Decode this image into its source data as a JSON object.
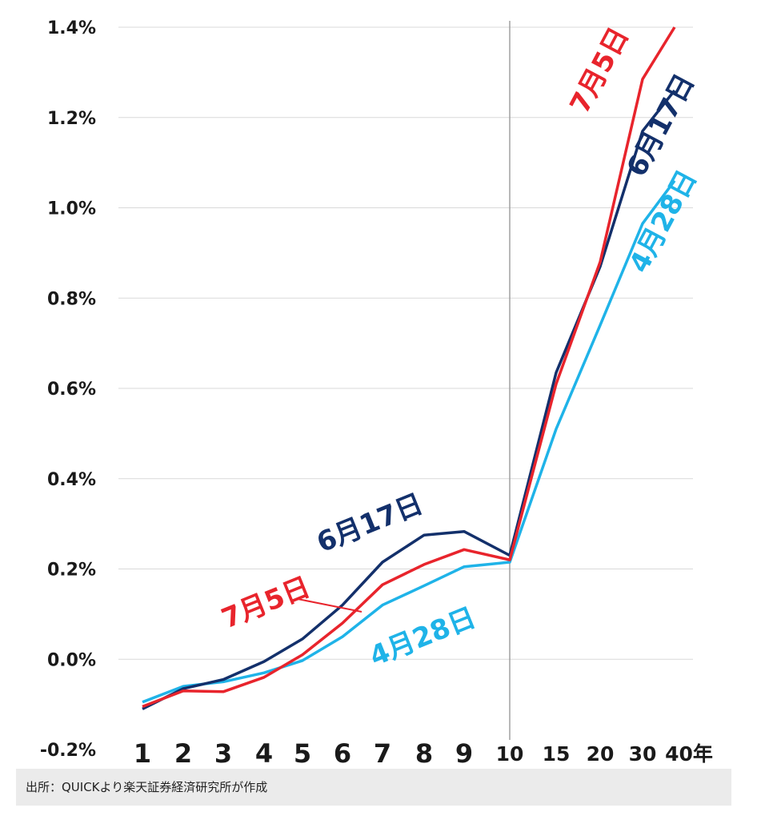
{
  "chart_data": {
    "type": "line",
    "title": "",
    "xlabel": "",
    "ylabel": "",
    "categories": [
      "1",
      "2",
      "3",
      "4",
      "5",
      "6",
      "7",
      "8",
      "9",
      "10",
      "15",
      "20",
      "30",
      "40年"
    ],
    "y_tick_labels": [
      "1.4%",
      "1.2%",
      "1.0%",
      "0.8%",
      "0.6%",
      "0.4%",
      "0.2%",
      "0.0%",
      "-0.2%"
    ],
    "y_ticks": [
      1.4,
      1.2,
      1.0,
      0.8,
      0.6,
      0.4,
      0.2,
      0.0,
      -0.2
    ],
    "ylim": [
      -0.2,
      1.4
    ],
    "grid": true,
    "series": [
      {
        "name": "4月28日",
        "color": "#1fb3e8",
        "values": [
          -0.095,
          -0.06,
          -0.05,
          -0.03,
          -0.003,
          0.05,
          0.12,
          0.163,
          0.205,
          0.215,
          0.51,
          0.74,
          0.965,
          1.06
        ]
      },
      {
        "name": "6月17日",
        "color": "#13306b",
        "values": [
          -0.11,
          -0.065,
          -0.045,
          -0.005,
          0.045,
          0.12,
          0.215,
          0.275,
          0.283,
          0.23,
          0.635,
          0.87,
          1.17,
          1.26
        ]
      },
      {
        "name": "7月5日",
        "color": "#e8242c",
        "values": [
          -0.105,
          -0.07,
          -0.072,
          -0.04,
          0.01,
          0.08,
          0.165,
          0.21,
          0.243,
          0.22,
          0.61,
          0.88,
          1.285,
          1.4
        ]
      }
    ]
  },
  "source_note": "出所：QUICKより楽天証券経済研究所が作成"
}
